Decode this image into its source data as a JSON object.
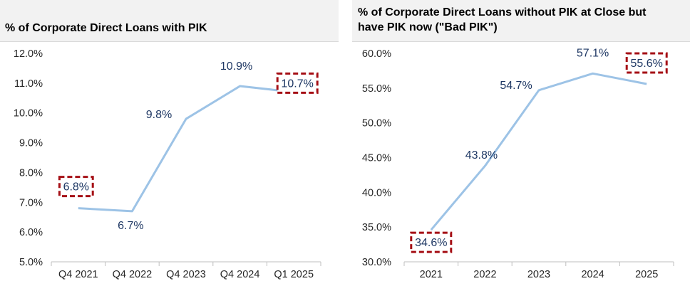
{
  "chart_data": [
    {
      "type": "line",
      "title": "% of Corporate Direct Loans with PIK",
      "categories": [
        "Q4 2021",
        "Q4 2022",
        "Q4 2023",
        "Q4 2024",
        "Q1 2025"
      ],
      "values": [
        6.8,
        6.7,
        9.8,
        10.9,
        10.7
      ],
      "data_labels": [
        "6.8%",
        "6.7%",
        "9.8%",
        "10.9%",
        "10.7%"
      ],
      "highlighted": [
        0,
        4
      ],
      "ylim": [
        5.0,
        12.0
      ],
      "yticks": [
        "5.0%",
        "6.0%",
        "7.0%",
        "8.0%",
        "9.0%",
        "10.0%",
        "11.0%",
        "12.0%"
      ],
      "xlabel": "",
      "ylabel": "",
      "grid": false,
      "line_color": "#9dc3e6",
      "highlight_color": "#a50f15"
    },
    {
      "type": "line",
      "title": "% of Corporate Direct Loans without PIK at Close but have PIK now (\"Bad PIK\")",
      "categories": [
        "2021",
        "2022",
        "2023",
        "2024",
        "2025"
      ],
      "values": [
        34.6,
        43.8,
        54.7,
        57.1,
        55.6
      ],
      "data_labels": [
        "34.6%",
        "43.8%",
        "54.7%",
        "57.1%",
        "55.6%"
      ],
      "highlighted": [
        0,
        4
      ],
      "ylim": [
        30.0,
        60.0
      ],
      "yticks": [
        "30.0%",
        "35.0%",
        "40.0%",
        "45.0%",
        "50.0%",
        "55.0%",
        "60.0%"
      ],
      "xlabel": "",
      "ylabel": "",
      "grid": false,
      "line_color": "#9dc3e6",
      "highlight_color": "#a50f15"
    }
  ],
  "headers": {
    "left": "% of Corporate Direct Loans with PIK",
    "right_line1": "% of Corporate Direct Loans without PIK at Close but",
    "right_line2": "have PIK now (\"Bad PIK\")"
  }
}
